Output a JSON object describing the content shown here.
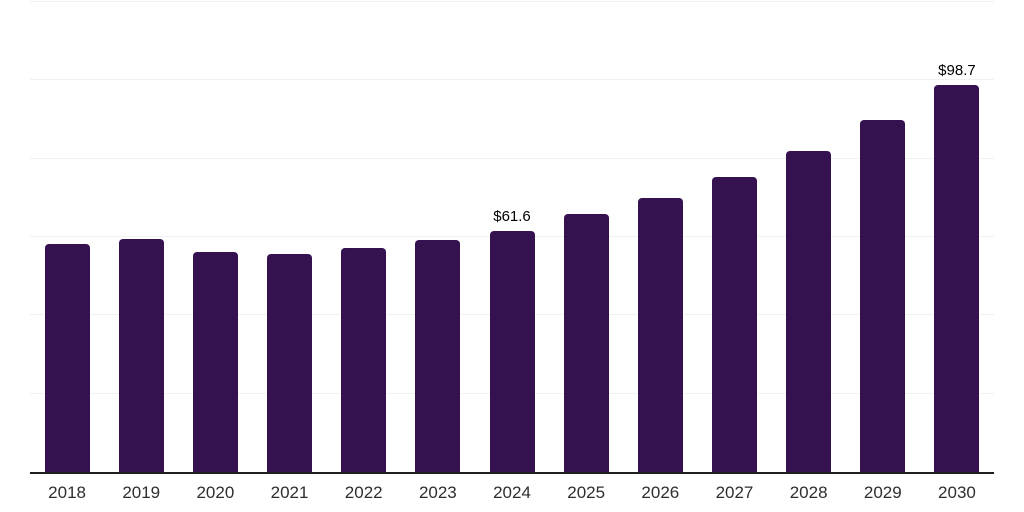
{
  "chart_data": {
    "type": "bar",
    "title": "",
    "xlabel": "",
    "ylabel": "",
    "categories": [
      "2018",
      "2019",
      "2020",
      "2021",
      "2022",
      "2023",
      "2024",
      "2025",
      "2026",
      "2027",
      "2028",
      "2029",
      "2030"
    ],
    "values": [
      58.2,
      59.5,
      56.2,
      55.7,
      57.3,
      59.2,
      61.6,
      65.8,
      70.0,
      75.3,
      81.9,
      90.0,
      98.7
    ],
    "data_labels": [
      null,
      null,
      null,
      null,
      null,
      null,
      "$61.6",
      null,
      null,
      null,
      null,
      null,
      "$98.7"
    ],
    "ylim": [
      0,
      120
    ],
    "gridline_step": 20,
    "grid": true,
    "legend": false,
    "y_axis_labels_visible": false,
    "colors": {
      "bar": "#351150",
      "axis": "#1f1f1f",
      "gridline": "#f1f1f1",
      "tick_label": "#2e2e2e",
      "data_label": "#000000",
      "background": "#ffffff"
    }
  }
}
